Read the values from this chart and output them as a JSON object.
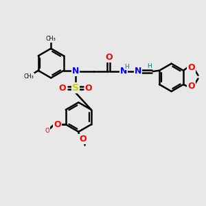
{
  "bg_color": "#e8e8e8",
  "bond_color": "#000000",
  "N_color": "#0000ff",
  "O_color": "#ff0000",
  "S_color": "#cccc00",
  "H_color": "#008080",
  "lw": 1.8,
  "figsize": [
    3.0,
    3.0
  ],
  "dpi": 100,
  "xlim": [
    0,
    10
  ],
  "ylim": [
    0,
    10
  ]
}
